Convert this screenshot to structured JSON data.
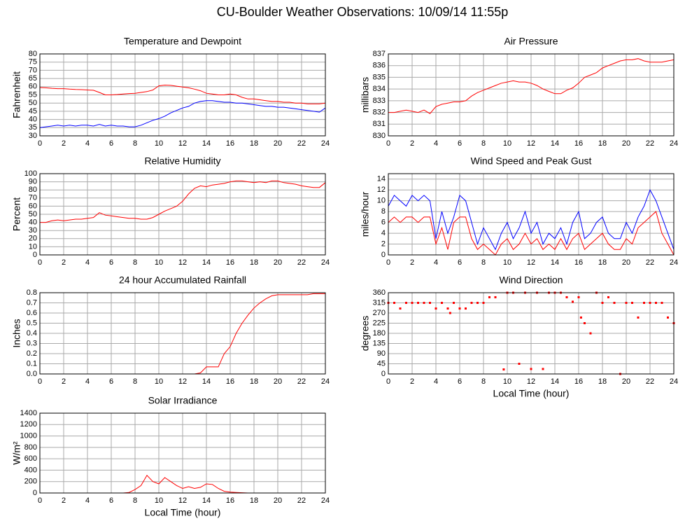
{
  "title": "CU-Boulder Weather Observations: 10/09/14 11:55p",
  "chart_data": [
    {
      "type": "line",
      "title": "Temperature and Dewpoint",
      "ylabel": "Fahrenheit",
      "x": [
        0,
        0.5,
        1,
        1.5,
        2,
        2.5,
        3,
        3.5,
        4,
        4.5,
        5,
        5.5,
        6,
        6.5,
        7,
        7.5,
        8,
        8.5,
        9,
        9.5,
        10,
        10.5,
        11,
        11.5,
        12,
        12.5,
        13,
        13.5,
        14,
        14.5,
        15,
        15.5,
        16,
        16.5,
        17,
        17.5,
        18,
        18.5,
        19,
        19.5,
        20,
        20.5,
        21,
        21.5,
        22,
        22.5,
        23,
        23.5,
        24
      ],
      "series": [
        {
          "color": "#ff0000",
          "values": [
            59.5,
            59.3,
            59,
            58.8,
            58.8,
            58.5,
            58.3,
            58.2,
            58,
            57.8,
            56.5,
            55,
            55,
            55.2,
            55.5,
            55.8,
            56,
            56.5,
            57,
            58,
            60.5,
            61,
            60.8,
            60.3,
            59.8,
            59.3,
            58.5,
            57.5,
            56,
            55.5,
            55,
            55,
            55.5,
            55,
            53.5,
            52.5,
            52.5,
            52,
            51.5,
            51,
            51,
            50.5,
            50.5,
            50,
            50,
            49.5,
            49.5,
            49.5,
            50
          ]
        },
        {
          "color": "#0000ff",
          "values": [
            35,
            35.5,
            36,
            36.5,
            36,
            36.5,
            36,
            36.5,
            36.5,
            36,
            37,
            36,
            36.5,
            36,
            36,
            35.5,
            35.5,
            36.5,
            38,
            39.5,
            40.5,
            42,
            44,
            45.5,
            47,
            48,
            50,
            51,
            51.5,
            51.5,
            51,
            50.5,
            50.5,
            50,
            50,
            49.5,
            49,
            48.5,
            48,
            48,
            47.5,
            47.5,
            47,
            46.5,
            46,
            45.5,
            45,
            44.5,
            47
          ]
        }
      ],
      "xlim": [
        0,
        24
      ],
      "xticks": [
        0,
        2,
        4,
        6,
        8,
        10,
        12,
        14,
        16,
        18,
        20,
        22,
        24
      ],
      "ylim": [
        30,
        80
      ],
      "yticks": [
        30,
        35,
        40,
        45,
        50,
        55,
        60,
        65,
        70,
        75,
        80
      ],
      "grid": true
    },
    {
      "type": "line",
      "title": "Air Pressure",
      "ylabel": "millibars",
      "x": [
        0,
        0.5,
        1,
        1.5,
        2,
        2.5,
        3,
        3.5,
        4,
        4.5,
        5,
        5.5,
        6,
        6.5,
        7,
        7.5,
        8,
        8.5,
        9,
        9.5,
        10,
        10.5,
        11,
        11.5,
        12,
        12.5,
        13,
        13.5,
        14,
        14.5,
        15,
        15.5,
        16,
        16.5,
        17,
        17.5,
        18,
        18.5,
        19,
        19.5,
        20,
        20.5,
        21,
        21.5,
        22,
        22.5,
        23,
        23.5,
        24
      ],
      "series": [
        {
          "color": "#ff0000",
          "values": [
            832,
            832,
            832.1,
            832.2,
            832.1,
            832,
            832.2,
            831.9,
            832.5,
            832.7,
            832.8,
            832.9,
            832.9,
            833,
            833.4,
            833.7,
            833.9,
            834.1,
            834.3,
            834.5,
            834.6,
            834.7,
            834.6,
            834.6,
            834.5,
            834.3,
            834,
            833.8,
            833.6,
            833.6,
            833.9,
            834.1,
            834.5,
            835,
            835.2,
            835.4,
            835.8,
            836,
            836.2,
            836.4,
            836.5,
            836.5,
            836.6,
            836.4,
            836.3,
            836.3,
            836.3,
            836.4,
            836.5
          ]
        }
      ],
      "xlim": [
        0,
        24
      ],
      "xticks": [
        0,
        2,
        4,
        6,
        8,
        10,
        12,
        14,
        16,
        18,
        20,
        22,
        24
      ],
      "ylim": [
        830,
        837
      ],
      "yticks": [
        830,
        831,
        832,
        833,
        834,
        835,
        836,
        837
      ],
      "grid": true
    },
    {
      "type": "line",
      "title": "Relative Humidity",
      "ylabel": "Percent",
      "x": [
        0,
        0.5,
        1,
        1.5,
        2,
        2.5,
        3,
        3.5,
        4,
        4.5,
        5,
        5.5,
        6,
        6.5,
        7,
        7.5,
        8,
        8.5,
        9,
        9.5,
        10,
        10.5,
        11,
        11.5,
        12,
        12.5,
        13,
        13.5,
        14,
        14.5,
        15,
        15.5,
        16,
        16.5,
        17,
        17.5,
        18,
        18.5,
        19,
        19.5,
        20,
        20.5,
        21,
        21.5,
        22,
        22.5,
        23,
        23.5,
        24
      ],
      "series": [
        {
          "color": "#ff0000",
          "values": [
            40,
            40,
            42,
            43,
            42,
            43,
            44,
            44,
            45,
            46,
            52,
            49,
            48,
            47,
            46,
            45,
            45,
            44,
            44,
            46,
            50,
            54,
            57,
            60,
            66,
            75,
            82,
            85,
            84,
            86,
            87,
            88,
            90,
            91,
            91,
            90,
            89,
            90,
            89,
            91,
            91,
            89,
            88,
            87,
            85,
            84,
            83,
            83,
            89
          ]
        }
      ],
      "xlim": [
        0,
        24
      ],
      "xticks": [
        0,
        2,
        4,
        6,
        8,
        10,
        12,
        14,
        16,
        18,
        20,
        22,
        24
      ],
      "ylim": [
        0,
        100
      ],
      "yticks": [
        0,
        10,
        20,
        30,
        40,
        50,
        60,
        70,
        80,
        90,
        100
      ],
      "grid": true
    },
    {
      "type": "line",
      "title": "Wind Speed and Peak Gust",
      "ylabel": "miles/hour",
      "x": [
        0,
        0.5,
        1,
        1.5,
        2,
        2.5,
        3,
        3.5,
        4,
        4.5,
        5,
        5.5,
        6,
        6.5,
        7,
        7.5,
        8,
        8.5,
        9,
        9.5,
        10,
        10.5,
        11,
        11.5,
        12,
        12.5,
        13,
        13.5,
        14,
        14.5,
        15,
        15.5,
        16,
        16.5,
        17,
        17.5,
        18,
        18.5,
        19,
        19.5,
        20,
        20.5,
        21,
        21.5,
        22,
        22.5,
        23,
        23.5,
        24
      ],
      "series": [
        {
          "color": "#0000ff",
          "values": [
            9,
            11,
            10,
            9,
            11,
            10,
            11,
            10,
            3,
            8,
            4,
            7,
            11,
            10,
            6,
            2,
            5,
            3,
            1,
            4,
            6,
            3,
            5,
            8,
            4,
            6,
            2,
            4,
            3,
            5,
            2,
            6,
            8,
            3,
            4,
            6,
            7,
            4,
            3,
            3,
            6,
            4,
            7,
            9,
            12,
            10,
            7,
            4,
            1
          ]
        },
        {
          "color": "#ff0000",
          "values": [
            6,
            7,
            6,
            7,
            7,
            6,
            7,
            7,
            2,
            5,
            1,
            6,
            7,
            7,
            3,
            1,
            2,
            1,
            0,
            2,
            3,
            1,
            2,
            4,
            2,
            3,
            1,
            2,
            1,
            3,
            1,
            3,
            4,
            1,
            2,
            3,
            4,
            2,
            1,
            1,
            3,
            2,
            5,
            6,
            7,
            8,
            4,
            2,
            0
          ]
        }
      ],
      "xlim": [
        0,
        24
      ],
      "xticks": [
        0,
        2,
        4,
        6,
        8,
        10,
        12,
        14,
        16,
        18,
        20,
        22,
        24
      ],
      "ylim": [
        0,
        15
      ],
      "yticks": [
        0,
        2,
        4,
        6,
        8,
        10,
        12,
        14
      ],
      "grid": true
    },
    {
      "type": "line",
      "title": "24 hour Accumulated Rainfall",
      "ylabel": "Inches",
      "x": [
        0,
        0.5,
        1,
        1.5,
        2,
        2.5,
        3,
        3.5,
        4,
        4.5,
        5,
        5.5,
        6,
        6.5,
        7,
        7.5,
        8,
        8.5,
        9,
        9.5,
        10,
        10.5,
        11,
        11.5,
        12,
        12.5,
        13,
        13.5,
        14,
        14.5,
        15,
        15.5,
        16,
        16.5,
        17,
        17.5,
        18,
        18.5,
        19,
        19.5,
        20,
        20.5,
        21,
        21.5,
        22,
        22.5,
        23,
        23.5,
        24
      ],
      "series": [
        {
          "color": "#ff0000",
          "values": [
            0,
            0,
            0,
            0,
            0,
            0,
            0,
            0,
            0,
            0,
            0,
            0,
            0,
            0,
            0,
            0,
            0,
            0,
            0,
            0,
            0,
            0,
            0,
            0,
            0,
            0,
            0,
            0.01,
            0.07,
            0.07,
            0.07,
            0.2,
            0.27,
            0.4,
            0.5,
            0.58,
            0.65,
            0.7,
            0.74,
            0.77,
            0.78,
            0.78,
            0.78,
            0.78,
            0.78,
            0.78,
            0.79,
            0.79,
            0.79
          ]
        }
      ],
      "xlim": [
        0,
        24
      ],
      "xticks": [
        0,
        2,
        4,
        6,
        8,
        10,
        12,
        14,
        16,
        18,
        20,
        22,
        24
      ],
      "ylim": [
        0,
        0.8
      ],
      "yticks": [
        {
          "value": 0,
          "label": "0.0"
        },
        0.1,
        0.2,
        0.3,
        0.4,
        0.5,
        0.6,
        0.7,
        0.8
      ],
      "grid": true
    },
    {
      "type": "scatter",
      "title": "Wind Direction",
      "ylabel": "degrees",
      "xlabel": "Local Time (hour)",
      "x": [
        0,
        0.5,
        1,
        1.5,
        2,
        2.5,
        3,
        3.5,
        4,
        4.5,
        5,
        5.2,
        5.5,
        6,
        6.5,
        7,
        7.5,
        8,
        8.5,
        9,
        9.7,
        10,
        10.5,
        11,
        11.5,
        12,
        12.5,
        13,
        13.5,
        14,
        14.5,
        15,
        15.5,
        16,
        16.2,
        16.5,
        17,
        17.5,
        18,
        18.5,
        19,
        19.5,
        20,
        20.5,
        21,
        21.5,
        22,
        22.5,
        23,
        23.5,
        24
      ],
      "series": [
        {
          "color": "#ff0000",
          "values": [
            315,
            315,
            290,
            315,
            315,
            315,
            315,
            315,
            290,
            315,
            290,
            270,
            315,
            290,
            290,
            315,
            315,
            315,
            340,
            340,
            20,
            360,
            360,
            45,
            360,
            22,
            360,
            22,
            360,
            360,
            360,
            340,
            320,
            340,
            250,
            225,
            180,
            360,
            315,
            340,
            315,
            0,
            315,
            315,
            250,
            315,
            315,
            315,
            315,
            250,
            225
          ]
        }
      ],
      "xlim": [
        0,
        24
      ],
      "xticks": [
        0,
        2,
        4,
        6,
        8,
        10,
        12,
        14,
        16,
        18,
        20,
        22,
        24
      ],
      "ylim": [
        0,
        360
      ],
      "yticks": [
        0,
        45,
        90,
        135,
        180,
        225,
        270,
        315,
        360
      ],
      "grid": true
    },
    {
      "type": "line",
      "title": "Solar Irradiance",
      "ylabel": "W/m²",
      "xlabel": "Local Time (hour)",
      "x": [
        0,
        0.5,
        1,
        1.5,
        2,
        2.5,
        3,
        3.5,
        4,
        4.5,
        5,
        5.5,
        6,
        6.5,
        7,
        7.5,
        8,
        8.5,
        9,
        9.5,
        10,
        10.5,
        11,
        11.5,
        12,
        12.5,
        13,
        13.5,
        14,
        14.5,
        15,
        15.5,
        16,
        16.5,
        17,
        17.5,
        18,
        18.5,
        19,
        19.5,
        20,
        20.5,
        21,
        21.5,
        22,
        22.5,
        23,
        23.5,
        24
      ],
      "series": [
        {
          "color": "#ff0000",
          "values": [
            0,
            0,
            0,
            0,
            0,
            0,
            0,
            0,
            0,
            0,
            0,
            0,
            0,
            0,
            0,
            10,
            60,
            130,
            310,
            200,
            160,
            270,
            200,
            130,
            80,
            110,
            80,
            100,
            160,
            150,
            80,
            30,
            15,
            10,
            5,
            0,
            0,
            0,
            0,
            0,
            0,
            0,
            0,
            0,
            0,
            0,
            0,
            0,
            0
          ]
        }
      ],
      "xlim": [
        0,
        24
      ],
      "xticks": [
        0,
        2,
        4,
        6,
        8,
        10,
        12,
        14,
        16,
        18,
        20,
        22,
        24
      ],
      "ylim": [
        0,
        1400
      ],
      "yticks": [
        0,
        200,
        400,
        600,
        800,
        1000,
        1200,
        1400
      ],
      "grid": true
    }
  ]
}
